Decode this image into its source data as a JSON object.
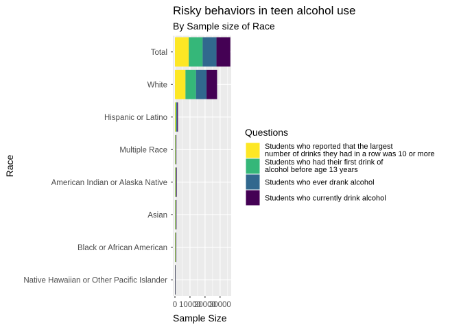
{
  "chart_data": {
    "type": "bar",
    "orientation": "horizontal",
    "stacked": true,
    "title": "Risky behaviors in teen alcohol use",
    "subtitle": "By Sample size of Race",
    "xlabel": "Sample Size",
    "ylabel": "Race",
    "xlim": [
      0,
      36000
    ],
    "x_ticks": [
      0,
      10000,
      20000,
      30000
    ],
    "x_tick_labels": [
      "0",
      "10000",
      "20000",
      "30000"
    ],
    "grid": true,
    "legend_position": "right",
    "legend_title": "Questions",
    "categories": [
      "Total",
      "White",
      "Hispanic or Latino",
      "Multiple Race",
      "American Indian or Alaska Native",
      "Asian",
      "Black or African American",
      "Native Hawaiian or Other Pacific Islander"
    ],
    "series": [
      {
        "name": "Students who reported that the largest number of drinks they had in a row was 10 or more",
        "legend_lines": [
          "Students who reported that the largest",
          "number of drinks they had in a row was 10 or more"
        ],
        "color": "#fde725",
        "values": [
          9200,
          7000,
          500,
          250,
          300,
          250,
          250,
          70
        ]
      },
      {
        "name": "Students who had their first drink of alcohol before age 13 years",
        "legend_lines": [
          "Students who had their first drink of",
          "alcohol before age 13 years"
        ],
        "color": "#35b779",
        "values": [
          9200,
          7000,
          500,
          300,
          300,
          300,
          300,
          70
        ]
      },
      {
        "name": "Students who ever drank alcohol",
        "legend_lines": [
          "Students who ever drank alcohol"
        ],
        "color": "#31688e",
        "values": [
          9200,
          7000,
          500,
          200,
          300,
          250,
          150,
          70
        ]
      },
      {
        "name": "Students who currently drink alcohol",
        "legend_lines": [
          "Students who currently drink alcohol"
        ],
        "color": "#440154",
        "values": [
          9200,
          7000,
          500,
          150,
          300,
          250,
          150,
          70
        ]
      }
    ]
  }
}
